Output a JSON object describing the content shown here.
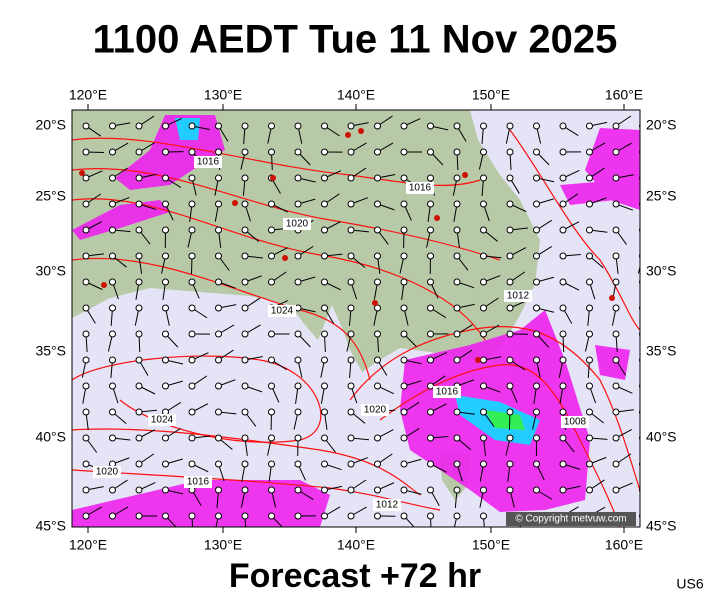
{
  "header": {
    "title": "1100 AEDT Tue 11 Nov 2025"
  },
  "footer": {
    "forecast": "Forecast +72 hr",
    "model": "US6"
  },
  "map": {
    "lon_labels": [
      "120°E",
      "130°E",
      "140°E",
      "150°E",
      "160°E"
    ],
    "lat_labels": [
      "20°S",
      "25°S",
      "30°S",
      "35°S",
      "40°S",
      "45°S"
    ],
    "isobar_labels": [
      "1016",
      "1016",
      "1020",
      "1024",
      "1012",
      "1016",
      "1020",
      "1024",
      "1020",
      "1016",
      "1012",
      "1008"
    ],
    "copyright": "© Copyright metvuw.com"
  }
}
